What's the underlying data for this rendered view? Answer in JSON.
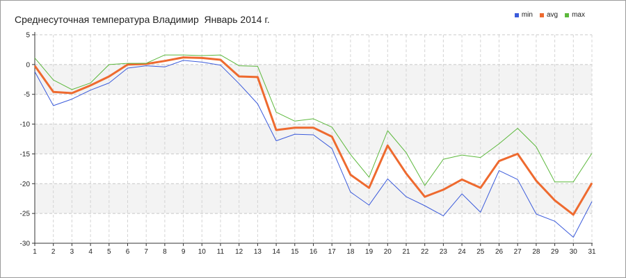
{
  "chart_data": {
    "type": "line",
    "title": "Среднесуточная температура Владимир  Январь 2014 г.",
    "xlabel": "",
    "ylabel": "",
    "x": [
      1,
      2,
      3,
      4,
      5,
      6,
      7,
      8,
      9,
      10,
      11,
      12,
      13,
      14,
      15,
      16,
      17,
      18,
      19,
      20,
      21,
      22,
      23,
      24,
      25,
      26,
      27,
      28,
      29,
      30,
      31
    ],
    "xlim": [
      1,
      31
    ],
    "ylim": [
      -30,
      5
    ],
    "yticks": [
      5,
      0,
      -5,
      -10,
      -15,
      -20,
      -25,
      -30
    ],
    "grid": true,
    "legend_position": "top-right",
    "series": [
      {
        "name": "min",
        "color": "#3b5bdb",
        "values": [
          -1.2,
          -6.9,
          -5.8,
          -4.3,
          -3.1,
          -0.6,
          -0.2,
          -0.4,
          0.7,
          0.4,
          -0.1,
          -3.2,
          -6.6,
          -12.8,
          -11.7,
          -11.8,
          -14.1,
          -21.4,
          -23.6,
          -19.2,
          -22.2,
          -23.7,
          -25.4,
          -21.7,
          -24.8,
          -17.8,
          -19.3,
          -25.1,
          -26.3,
          -29.0,
          -23.0
        ]
      },
      {
        "name": "avg",
        "color": "#ee6a2f",
        "values": [
          -0.2,
          -4.6,
          -4.8,
          -3.5,
          -2.0,
          0.0,
          0.1,
          0.6,
          1.2,
          1.1,
          0.8,
          -2.0,
          -2.1,
          -11.0,
          -10.6,
          -10.6,
          -12.1,
          -18.5,
          -20.7,
          -13.6,
          -18.3,
          -22.2,
          -21.0,
          -19.3,
          -20.7,
          -16.2,
          -15.0,
          -19.5,
          -22.8,
          -25.2,
          -19.9
        ]
      },
      {
        "name": "max",
        "color": "#5cb83c",
        "values": [
          1.1,
          -2.6,
          -4.2,
          -3.1,
          0.0,
          0.2,
          0.2,
          1.6,
          1.6,
          1.5,
          1.6,
          -0.2,
          -0.3,
          -8.0,
          -9.5,
          -9.1,
          -10.5,
          -15.1,
          -18.9,
          -11.1,
          -14.8,
          -20.3,
          -15.9,
          -15.2,
          -15.6,
          -13.3,
          -10.7,
          -13.8,
          -19.7,
          -19.7,
          -14.9
        ]
      }
    ]
  }
}
